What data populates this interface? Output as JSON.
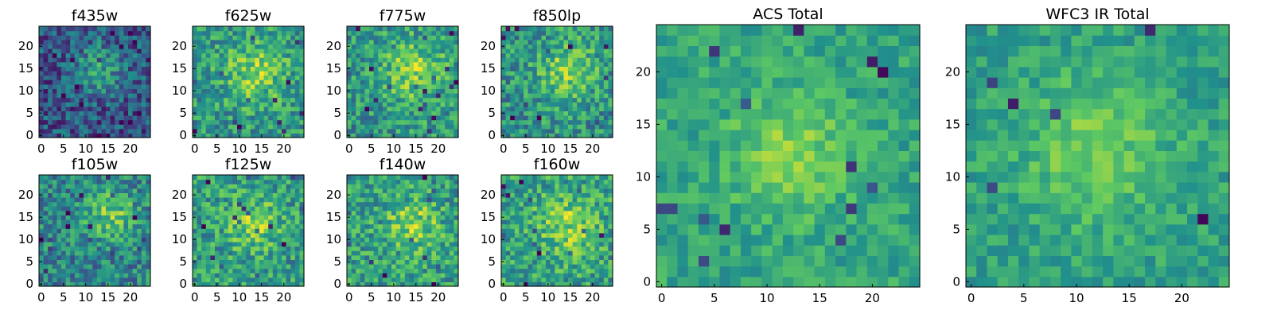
{
  "colors": {
    "colormap": "viridis",
    "viridis_stops": [
      "#440154",
      "#3b528b",
      "#21918c",
      "#5ec962",
      "#fde725"
    ]
  },
  "chart_data": [
    {
      "type": "heatmap",
      "title": "f435w",
      "xticks": [
        "0",
        "5",
        "10",
        "15",
        "20"
      ],
      "yticks": [
        "0",
        "5",
        "10",
        "15",
        "20"
      ],
      "xlim": [
        -0.5,
        24.5
      ],
      "ylim": [
        -0.5,
        24.5
      ],
      "grid": false,
      "legend": "none",
      "pixel_grid": [
        25,
        25
      ],
      "brightness": [
        0.02,
        0.74,
        0.53,
        0.62,
        0.29
      ]
    },
    {
      "type": "heatmap",
      "title": "f625w",
      "xticks": [
        "0",
        "5",
        "10",
        "15",
        "20"
      ],
      "yticks": [
        "0",
        "5",
        "10",
        "15",
        "20"
      ],
      "xlim": [
        -0.5,
        24.5
      ],
      "ylim": [
        -0.5,
        24.5
      ],
      "grid": false,
      "legend": "none",
      "pixel_grid": [
        25,
        25
      ],
      "brightness": [
        0.35,
        0.68,
        0.57,
        0.6,
        0.35
      ]
    },
    {
      "type": "heatmap",
      "title": "f775w",
      "xticks": [
        "0",
        "5",
        "10",
        "15",
        "20"
      ],
      "yticks": [
        "0",
        "5",
        "10",
        "15",
        "20"
      ],
      "xlim": [
        -0.5,
        24.5
      ],
      "ylim": [
        -0.5,
        24.5
      ],
      "grid": false,
      "legend": "none",
      "pixel_grid": [
        25,
        25
      ],
      "brightness": [
        0.35,
        0.7,
        0.6,
        0.61,
        0.34
      ]
    },
    {
      "type": "heatmap",
      "title": "f850lp",
      "xticks": [
        "0",
        "5",
        "10",
        "15",
        "20"
      ],
      "yticks": [
        "0",
        "5",
        "10",
        "15",
        "20"
      ],
      "xlim": [
        -0.5,
        24.5
      ],
      "ylim": [
        -0.5,
        24.5
      ],
      "grid": false,
      "legend": "none",
      "pixel_grid": [
        25,
        25
      ],
      "brightness": [
        0.32,
        0.68,
        0.6,
        0.62,
        0.35
      ]
    },
    {
      "type": "heatmap",
      "title": "f105w",
      "xticks": [
        "0",
        "5",
        "10",
        "15",
        "20"
      ],
      "yticks": [
        "0",
        "5",
        "10",
        "15",
        "20"
      ],
      "xlim": [
        -0.5,
        24.5
      ],
      "ylim": [
        -0.5,
        24.5
      ],
      "grid": false,
      "legend": "none",
      "pixel_grid": [
        25,
        25
      ],
      "brightness": [
        0.25,
        0.76,
        0.65,
        0.66,
        0.28
      ]
    },
    {
      "type": "heatmap",
      "title": "f125w",
      "xticks": [
        "0",
        "5",
        "10",
        "15",
        "20"
      ],
      "yticks": [
        "0",
        "5",
        "10",
        "15",
        "20"
      ],
      "xlim": [
        -0.5,
        24.5
      ],
      "ylim": [
        -0.5,
        24.5
      ],
      "grid": false,
      "legend": "none",
      "pixel_grid": [
        25,
        25
      ],
      "brightness": [
        0.38,
        0.64,
        0.55,
        0.56,
        0.28
      ]
    },
    {
      "type": "heatmap",
      "title": "f140w",
      "xticks": [
        "0",
        "5",
        "10",
        "15",
        "20"
      ],
      "yticks": [
        "0",
        "5",
        "10",
        "15",
        "20"
      ],
      "xlim": [
        -0.5,
        24.5
      ],
      "ylim": [
        -0.5,
        24.5
      ],
      "grid": false,
      "legend": "none",
      "pixel_grid": [
        25,
        25
      ],
      "brightness": [
        0.38,
        0.64,
        0.6,
        0.56,
        0.32
      ]
    },
    {
      "type": "heatmap",
      "title": "f160w",
      "xticks": [
        "0",
        "5",
        "10",
        "15",
        "20"
      ],
      "yticks": [
        "0",
        "5",
        "10",
        "15",
        "20"
      ],
      "xlim": [
        -0.5,
        24.5
      ],
      "ylim": [
        -0.5,
        24.5
      ],
      "grid": false,
      "legend": "none",
      "pixel_grid": [
        25,
        25
      ],
      "brightness": [
        0.4,
        0.62,
        0.6,
        0.56,
        0.33
      ]
    },
    {
      "type": "heatmap",
      "title": "ACS Total",
      "xticks": [
        "0",
        "5",
        "10",
        "15",
        "20"
      ],
      "yticks": [
        "0",
        "5",
        "10",
        "15",
        "20"
      ],
      "xlim": [
        -0.5,
        24.5
      ],
      "ylim": [
        -0.5,
        24.5
      ],
      "grid": false,
      "legend": "none",
      "pixel_grid": [
        25,
        25
      ],
      "brightness": [
        0.42,
        0.6,
        0.5,
        0.5,
        0.27
      ]
    },
    {
      "type": "heatmap",
      "title": "WFC3 IR Total",
      "xticks": [
        "0",
        "5",
        "10",
        "15",
        "20"
      ],
      "yticks": [
        "0",
        "5",
        "10",
        "15",
        "20"
      ],
      "xlim": [
        -0.5,
        24.5
      ],
      "ylim": [
        -0.5,
        24.5
      ],
      "grid": false,
      "legend": "none",
      "pixel_grid": [
        25,
        25
      ],
      "brightness": [
        0.38,
        0.54,
        0.5,
        0.52,
        0.38
      ]
    }
  ]
}
